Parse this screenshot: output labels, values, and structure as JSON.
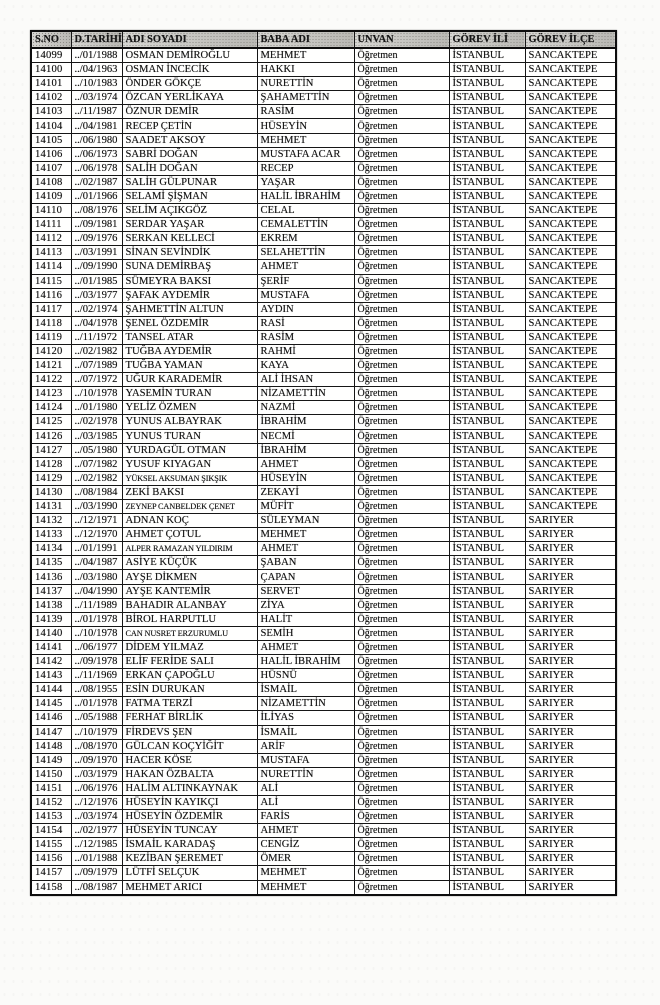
{
  "table": {
    "columns": [
      "S.NO",
      "D.TARİHİ",
      "ADI SOYADI",
      "BABA ADI",
      "UNVAN",
      "GÖREV İLİ",
      "GÖREV İLÇE"
    ],
    "rows": [
      [
        "14099",
        "../01/1988",
        "OSMAN DEMİROĞLU",
        "MEHMET",
        "Öğretmen",
        "İSTANBUL",
        "SANCAKTEPE"
      ],
      [
        "14100",
        "../04/1963",
        "OSMAN İNCECİK",
        "HAKKI",
        "Öğretmen",
        "İSTANBUL",
        "SANCAKTEPE"
      ],
      [
        "14101",
        "../10/1983",
        "ÖNDER GÖKÇE",
        "NURETTİN",
        "Öğretmen",
        "İSTANBUL",
        "SANCAKTEPE"
      ],
      [
        "14102",
        "../03/1974",
        "ÖZCAN YERLİKAYA",
        "ŞAHAMETTİN",
        "Öğretmen",
        "İSTANBUL",
        "SANCAKTEPE"
      ],
      [
        "14103",
        "../11/1987",
        "ÖZNUR DEMİR",
        "RASİM",
        "Öğretmen",
        "İSTANBUL",
        "SANCAKTEPE"
      ],
      [
        "14104",
        "../04/1981",
        "RECEP ÇETİN",
        "HÜSEYİN",
        "Öğretmen",
        "İSTANBUL",
        "SANCAKTEPE"
      ],
      [
        "14105",
        "../06/1980",
        "SAADET AKSOY",
        "MEHMET",
        "Öğretmen",
        "İSTANBUL",
        "SANCAKTEPE"
      ],
      [
        "14106",
        "../06/1973",
        "SABRİ DOĞAN",
        "MUSTAFA ACAR",
        "Öğretmen",
        "İSTANBUL",
        "SANCAKTEPE"
      ],
      [
        "14107",
        "../06/1978",
        "SALİH DOĞAN",
        "RECEP",
        "Öğretmen",
        "İSTANBUL",
        "SANCAKTEPE"
      ],
      [
        "14108",
        "../02/1987",
        "SALİH GÜLPUNAR",
        "YAŞAR",
        "Öğretmen",
        "İSTANBUL",
        "SANCAKTEPE"
      ],
      [
        "14109",
        "../01/1966",
        "SELAMİ ŞİŞMAN",
        "HALİL İBRAHİM",
        "Öğretmen",
        "İSTANBUL",
        "SANCAKTEPE"
      ],
      [
        "14110",
        "../08/1976",
        "SELİM AÇIKGÖZ",
        "CELAL",
        "Öğretmen",
        "İSTANBUL",
        "SANCAKTEPE"
      ],
      [
        "14111",
        "../09/1981",
        "SERDAR YAŞAR",
        "CEMALETTİN",
        "Öğretmen",
        "İSTANBUL",
        "SANCAKTEPE"
      ],
      [
        "14112",
        "../09/1976",
        "SERKAN KELLECİ",
        "EKREM",
        "Öğretmen",
        "İSTANBUL",
        "SANCAKTEPE"
      ],
      [
        "14113",
        "../03/1991",
        "SİNAN SEVİNDİK",
        "SELAHETTİN",
        "Öğretmen",
        "İSTANBUL",
        "SANCAKTEPE"
      ],
      [
        "14114",
        "../09/1990",
        "SUNA DEMİRBAŞ",
        "AHMET",
        "Öğretmen",
        "İSTANBUL",
        "SANCAKTEPE"
      ],
      [
        "14115",
        "../01/1985",
        "SÜMEYRA BAKSI",
        "ŞERİF",
        "Öğretmen",
        "İSTANBUL",
        "SANCAKTEPE"
      ],
      [
        "14116",
        "../03/1977",
        "ŞAFAK AYDEMİR",
        "MUSTAFA",
        "Öğretmen",
        "İSTANBUL",
        "SANCAKTEPE"
      ],
      [
        "14117",
        "../02/1974",
        "ŞAHMETTİN ALTUN",
        "AYDIN",
        "Öğretmen",
        "İSTANBUL",
        "SANCAKTEPE"
      ],
      [
        "14118",
        "../04/1978",
        "ŞENEL ÖZDEMİR",
        "RASİ",
        "Öğretmen",
        "İSTANBUL",
        "SANCAKTEPE"
      ],
      [
        "14119",
        "../11/1972",
        "TANSEL ATAR",
        "RASİM",
        "Öğretmen",
        "İSTANBUL",
        "SANCAKTEPE"
      ],
      [
        "14120",
        "../02/1982",
        "TUĞBA AYDEMİR",
        "RAHMİ",
        "Öğretmen",
        "İSTANBUL",
        "SANCAKTEPE"
      ],
      [
        "14121",
        "../07/1989",
        "TUĞBA YAMAN",
        "KAYA",
        "Öğretmen",
        "İSTANBUL",
        "SANCAKTEPE"
      ],
      [
        "14122",
        "../07/1972",
        "UĞUR KARADEMİR",
        "ALİ İHSAN",
        "Öğretmen",
        "İSTANBUL",
        "SANCAKTEPE"
      ],
      [
        "14123",
        "../10/1978",
        "YASEMİN TURAN",
        "NİZAMETTİN",
        "Öğretmen",
        "İSTANBUL",
        "SANCAKTEPE"
      ],
      [
        "14124",
        "../01/1980",
        "YELİZ ÖZMEN",
        "NAZMİ",
        "Öğretmen",
        "İSTANBUL",
        "SANCAKTEPE"
      ],
      [
        "14125",
        "../02/1978",
        "YUNUS ALBAYRAK",
        "İBRAHİM",
        "Öğretmen",
        "İSTANBUL",
        "SANCAKTEPE"
      ],
      [
        "14126",
        "../03/1985",
        "YUNUS TURAN",
        "NECMİ",
        "Öğretmen",
        "İSTANBUL",
        "SANCAKTEPE"
      ],
      [
        "14127",
        "../05/1980",
        "YURDAGÜL OTMAN",
        "İBRAHİM",
        "Öğretmen",
        "İSTANBUL",
        "SANCAKTEPE"
      ],
      [
        "14128",
        "../07/1982",
        "YUSUF KIYAGAN",
        "AHMET",
        "Öğretmen",
        "İSTANBUL",
        "SANCAKTEPE"
      ],
      [
        "14129",
        "../02/1982",
        "YÜKSEL AKSUMAN ŞIKŞIK",
        "HÜSEYİN",
        "Öğretmen",
        "İSTANBUL",
        "SANCAKTEPE"
      ],
      [
        "14130",
        "../08/1984",
        "ZEKİ BAKSI",
        "ZEKAYİ",
        "Öğretmen",
        "İSTANBUL",
        "SANCAKTEPE"
      ],
      [
        "14131",
        "../03/1990",
        "ZEYNEP CANBELDEK ÇENET",
        "MÜFİT",
        "Öğretmen",
        "İSTANBUL",
        "SANCAKTEPE"
      ],
      [
        "14132",
        "../12/1971",
        "ADNAN KOÇ",
        "SÜLEYMAN",
        "Öğretmen",
        "İSTANBUL",
        "SARIYER"
      ],
      [
        "14133",
        "../12/1970",
        "AHMET ÇOTUL",
        "MEHMET",
        "Öğretmen",
        "İSTANBUL",
        "SARIYER"
      ],
      [
        "14134",
        "../01/1991",
        "ALPER RAMAZAN YILDIRIM",
        "AHMET",
        "Öğretmen",
        "İSTANBUL",
        "SARIYER"
      ],
      [
        "14135",
        "../04/1987",
        "ASİYE KÜÇÜK",
        "ŞABAN",
        "Öğretmen",
        "İSTANBUL",
        "SARIYER"
      ],
      [
        "14136",
        "../03/1980",
        "AYŞE DİKMEN",
        "ÇAPAN",
        "Öğretmen",
        "İSTANBUL",
        "SARIYER"
      ],
      [
        "14137",
        "../04/1990",
        "AYŞE KANTEMİR",
        "SERVET",
        "Öğretmen",
        "İSTANBUL",
        "SARIYER"
      ],
      [
        "14138",
        "../11/1989",
        "BAHADIR ALANBAY",
        "ZİYA",
        "Öğretmen",
        "İSTANBUL",
        "SARIYER"
      ],
      [
        "14139",
        "../01/1978",
        "BİROL HARPUTLU",
        "HALİT",
        "Öğretmen",
        "İSTANBUL",
        "SARIYER"
      ],
      [
        "14140",
        "../10/1978",
        "CAN NUSRET ERZURUMLU",
        "SEMİH",
        "Öğretmen",
        "İSTANBUL",
        "SARIYER"
      ],
      [
        "14141",
        "../06/1977",
        "DİDEM YILMAZ",
        "AHMET",
        "Öğretmen",
        "İSTANBUL",
        "SARIYER"
      ],
      [
        "14142",
        "../09/1978",
        "ELİF FERİDE SALI",
        "HALİL İBRAHİM",
        "Öğretmen",
        "İSTANBUL",
        "SARIYER"
      ],
      [
        "14143",
        "../11/1969",
        "ERKAN ÇAPOĞLU",
        "HÜSNÜ",
        "Öğretmen",
        "İSTANBUL",
        "SARIYER"
      ],
      [
        "14144",
        "../08/1955",
        "ESİN DURUKAN",
        "İSMAİL",
        "Öğretmen",
        "İSTANBUL",
        "SARIYER"
      ],
      [
        "14145",
        "../01/1978",
        "FATMA TERZİ",
        "NİZAMETTİN",
        "Öğretmen",
        "İSTANBUL",
        "SARIYER"
      ],
      [
        "14146",
        "../05/1988",
        "FERHAT BİRLİK",
        "İLİYAS",
        "Öğretmen",
        "İSTANBUL",
        "SARIYER"
      ],
      [
        "14147",
        "../10/1979",
        "FİRDEVS ŞEN",
        "İSMAİL",
        "Öğretmen",
        "İSTANBUL",
        "SARIYER"
      ],
      [
        "14148",
        "../08/1970",
        "GÜLCAN KOÇYİĞİT",
        "ARİF",
        "Öğretmen",
        "İSTANBUL",
        "SARIYER"
      ],
      [
        "14149",
        "../09/1970",
        "HACER KÖSE",
        "MUSTAFA",
        "Öğretmen",
        "İSTANBUL",
        "SARIYER"
      ],
      [
        "14150",
        "../03/1979",
        "HAKAN ÖZBALTA",
        "NURETTİN",
        "Öğretmen",
        "İSTANBUL",
        "SARIYER"
      ],
      [
        "14151",
        "../06/1976",
        "HALİM ALTINKAYNAK",
        "ALİ",
        "Öğretmen",
        "İSTANBUL",
        "SARIYER"
      ],
      [
        "14152",
        "../12/1976",
        "HÜSEYİN KAYIKÇI",
        "ALİ",
        "Öğretmen",
        "İSTANBUL",
        "SARIYER"
      ],
      [
        "14153",
        "../03/1974",
        "HÜSEYİN ÖZDEMİR",
        "FARİS",
        "Öğretmen",
        "İSTANBUL",
        "SARIYER"
      ],
      [
        "14154",
        "../02/1977",
        "HÜSEYİN TUNCAY",
        "AHMET",
        "Öğretmen",
        "İSTANBUL",
        "SARIYER"
      ],
      [
        "14155",
        "../12/1985",
        "İSMAİL KARADAŞ",
        "CENGİZ",
        "Öğretmen",
        "İSTANBUL",
        "SARIYER"
      ],
      [
        "14156",
        "../01/1988",
        "KEZİBAN ŞEREMET",
        "ÖMER",
        "Öğretmen",
        "İSTANBUL",
        "SARIYER"
      ],
      [
        "14157",
        "../09/1979",
        "LÜTFİ SELÇUK",
        "MEHMET",
        "Öğretmen",
        "İSTANBUL",
        "SARIYER"
      ],
      [
        "14158",
        "../08/1987",
        "MEHMET ARICI",
        "MEHMET",
        "Öğretmen",
        "İSTANBUL",
        "SARIYER"
      ]
    ]
  }
}
